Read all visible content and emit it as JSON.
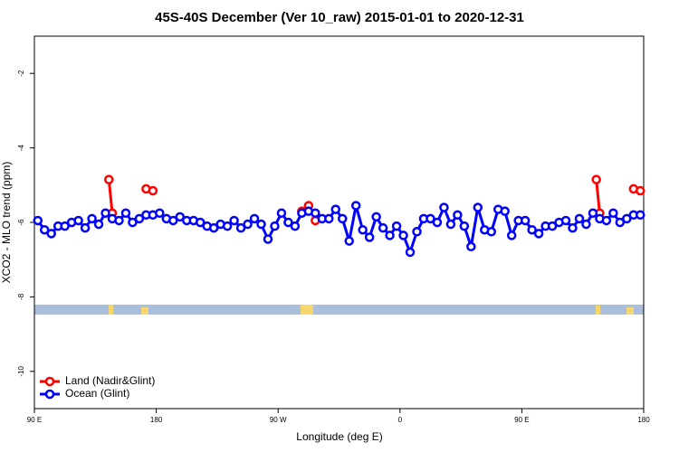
{
  "chart_data": {
    "type": "line",
    "title": "45S-40S December (Ver 10_raw)   2015-01-01 to 2020-12-31",
    "x_label": "Longitude (deg E)",
    "y_label": "XCO2 - MLO trend (ppm)",
    "xlim": [
      90,
      540
    ],
    "ylim": [
      -11,
      -1
    ],
    "xticks": [
      {
        "value": 90,
        "label": "90 E"
      },
      180,
      {
        "value": 270,
        "label": "90 W"
      },
      {
        "value": 360,
        "label": "0"
      },
      {
        "value": 450,
        "label": "90 E"
      },
      {
        "value": 540,
        "label": "180"
      }
    ],
    "yticks": [
      -2,
      -4,
      -6,
      -8,
      -10
    ],
    "legend": "bottom-left",
    "series": [
      {
        "name": "Land (Nadir&Glint)",
        "color": "#ff0000",
        "x": [
          145,
          147.5,
          null,
          172.5,
          177.5,
          null,
          287.5,
          292.5,
          297.5,
          null,
          505,
          507.5,
          null,
          532.5,
          537.5
        ],
        "values": [
          -4.85,
          -5.75,
          null,
          -5.1,
          -5.15,
          null,
          -5.7,
          -5.55,
          -5.95,
          null,
          -4.85,
          -5.75,
          null,
          -5.1,
          -5.15
        ]
      },
      {
        "name": "Ocean (Glint)",
        "color": "#0000ff",
        "x": [
          92.5,
          97.5,
          102.5,
          107.5,
          112.5,
          117.5,
          122.5,
          127.5,
          132.5,
          137.5,
          142.5,
          147.5,
          152.5,
          157.5,
          162.5,
          167.5,
          172.5,
          177.5,
          182.5,
          187.5,
          192.5,
          197.5,
          202.5,
          207.5,
          212.5,
          217.5,
          222.5,
          227.5,
          232.5,
          237.5,
          242.5,
          247.5,
          252.5,
          257.5,
          262.5,
          267.5,
          272.5,
          277.5,
          282.5,
          287.5,
          292.5,
          297.5,
          302.5,
          307.5,
          312.5,
          317.5,
          322.5,
          327.5,
          332.5,
          337.5,
          342.5,
          347.5,
          352.5,
          357.5,
          362.5,
          367.5,
          372.5,
          377.5,
          382.5,
          387.5,
          392.5,
          397.5,
          402.5,
          407.5,
          412.5,
          417.5,
          422.5,
          427.5,
          432.5,
          437.5,
          442.5,
          447.5,
          452.5,
          457.5,
          462.5,
          467.5,
          472.5,
          477.5,
          482.5,
          487.5,
          492.5,
          497.5,
          502.5,
          507.5,
          512.5,
          517.5,
          522.5,
          527.5,
          532.5,
          537.5
        ],
        "values": [
          -5.95,
          -6.2,
          -6.3,
          -6.1,
          -6.1,
          -6.0,
          -5.95,
          -6.15,
          -5.9,
          -6.05,
          -5.75,
          -5.9,
          -5.95,
          -5.75,
          -6.0,
          -5.9,
          -5.8,
          -5.8,
          -5.75,
          -5.9,
          -5.95,
          -5.85,
          -5.95,
          -5.95,
          -6.0,
          -6.1,
          -6.15,
          -6.05,
          -6.1,
          -5.95,
          -6.15,
          -6.05,
          -5.9,
          -6.05,
          -6.45,
          -6.1,
          -5.75,
          -6.0,
          -6.1,
          -5.75,
          -5.7,
          -5.75,
          -5.9,
          -5.9,
          -5.65,
          -5.9,
          -6.5,
          -5.55,
          -6.2,
          -6.4,
          -5.85,
          -6.15,
          -6.35,
          -6.1,
          -6.35,
          -6.8,
          -6.25,
          -5.9,
          -5.9,
          -6.0,
          -5.6,
          -6.05,
          -5.8,
          -6.1,
          -6.65,
          -5.6,
          -6.2,
          -6.25,
          -5.65,
          -5.7,
          -6.35,
          -5.95,
          -5.95,
          -6.2,
          -6.3,
          -6.1,
          -6.1,
          -6.0,
          -5.95,
          -6.15,
          -5.9,
          -6.05,
          -5.75,
          -5.9,
          -5.95,
          -5.75,
          -6.0,
          -5.9,
          -5.8,
          -5.8
        ]
      }
    ]
  }
}
